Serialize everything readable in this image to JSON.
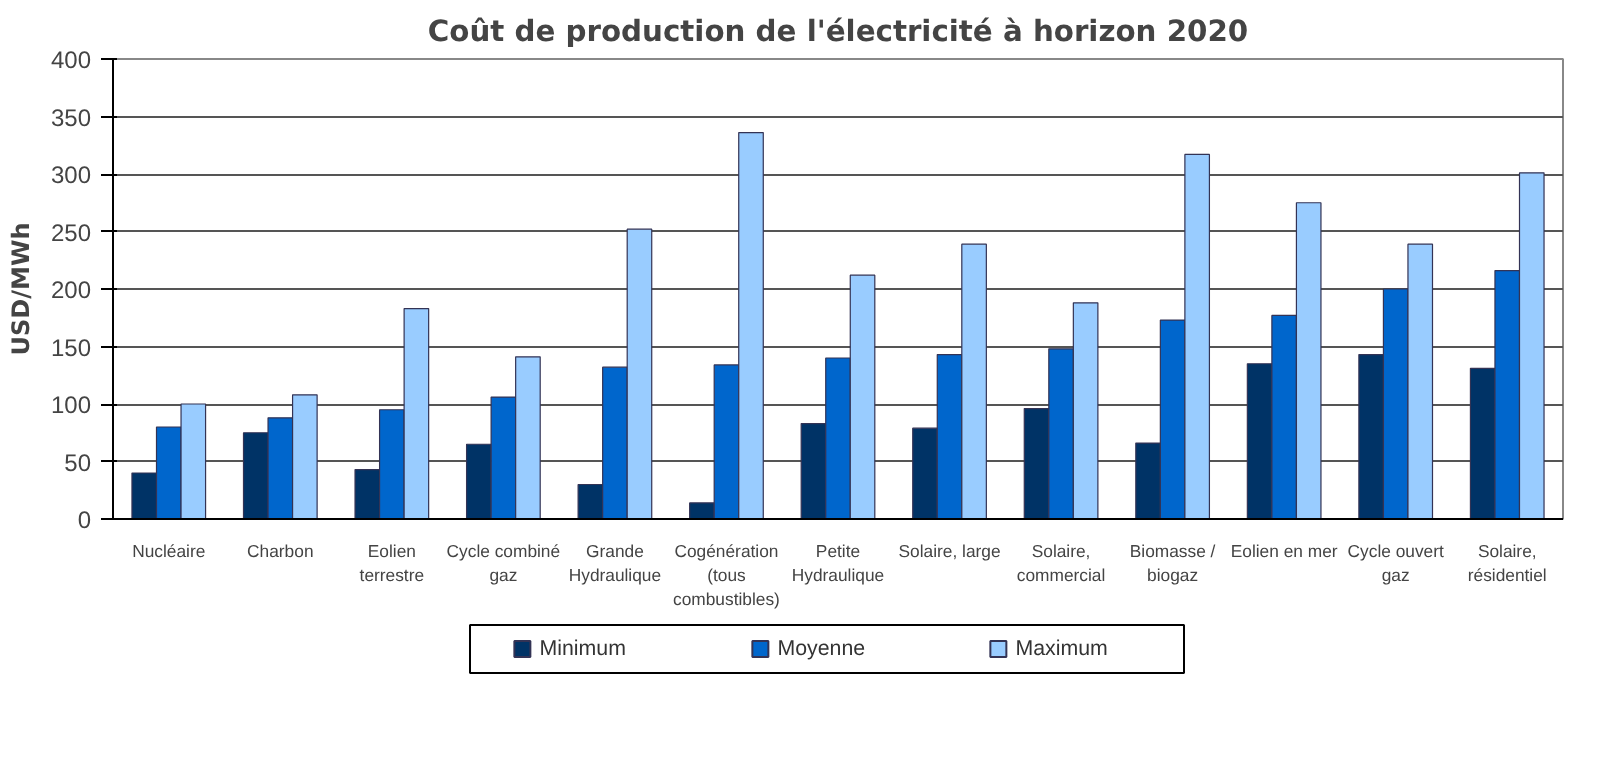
{
  "chart_data": {
    "type": "bar",
    "title": "Coût de production de l'électricité à horizon 2020",
    "ylabel": "USD/MWh",
    "categories": [
      "Nucléaire",
      "Charbon",
      "Eolien\nterrestre",
      "Cycle combiné\ngaz",
      "Grande\nHydraulique",
      "Cogénération\n(tous\ncombustibles)",
      "Petite\nHydraulique",
      "Solaire, large",
      "Solaire,\ncommercial",
      "Biomasse /\nbiogaz",
      "Eolien en mer",
      "Cycle ouvert\ngaz",
      "Solaire,\nrésidentiel"
    ],
    "series": [
      {
        "name": "Minimum",
        "color": "#003366",
        "values": [
          40,
          75,
          43,
          65,
          30,
          14,
          83,
          79,
          96,
          66,
          135,
          143,
          131
        ]
      },
      {
        "name": "Moyenne",
        "color": "#0066cc",
        "values": [
          80,
          88,
          95,
          106,
          132,
          134,
          140,
          143,
          148,
          173,
          177,
          200,
          216
        ]
      },
      {
        "name": "Maximum",
        "color": "#99ccff",
        "values": [
          100,
          108,
          183,
          141,
          252,
          336,
          212,
          239,
          188,
          317,
          275,
          239,
          301
        ]
      }
    ],
    "ylim": [
      0,
      400
    ],
    "yticks": [
      0,
      50,
      100,
      150,
      200,
      250,
      300,
      350,
      400
    ],
    "grid": "y",
    "legend": "bottom"
  }
}
